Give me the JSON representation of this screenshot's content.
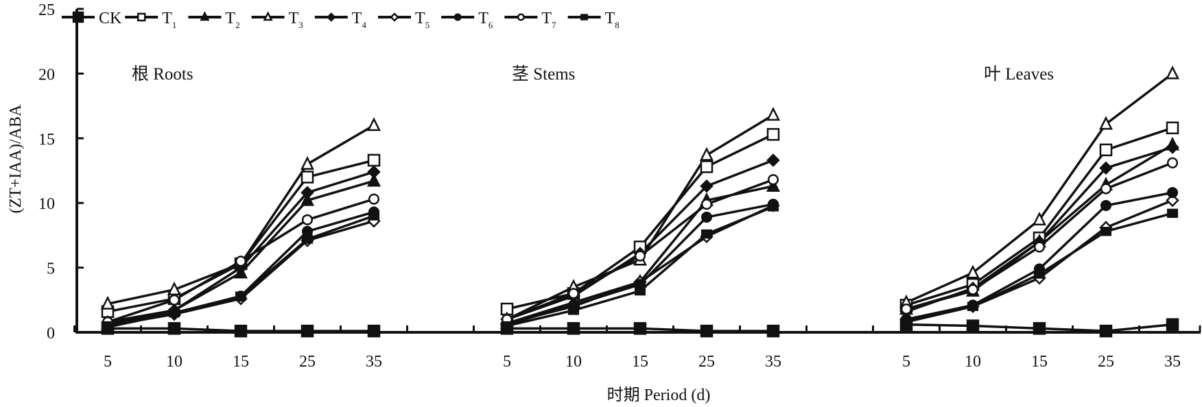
{
  "chart_data": {
    "type": "line",
    "ylabel": "(ZT+IAA)/ABA",
    "xlabel": "时期 Period (d)",
    "ylim": [
      0,
      25
    ],
    "yticks": [
      0,
      5,
      10,
      15,
      20,
      25
    ],
    "x": [
      "5",
      "10",
      "15",
      "25",
      "35"
    ],
    "legend_position": "top",
    "panels": [
      {
        "title": "根 Roots",
        "series": [
          {
            "name": "CK",
            "sub": "",
            "values": [
              0.3,
              0.3,
              0.1,
              0.1,
              0.1
            ]
          },
          {
            "name": "T",
            "sub": "1",
            "values": [
              1.6,
              2.6,
              5.3,
              12.0,
              13.3
            ]
          },
          {
            "name": "T",
            "sub": "2",
            "values": [
              0.6,
              1.7,
              4.6,
              10.2,
              11.7
            ]
          },
          {
            "name": "T",
            "sub": "3",
            "values": [
              2.2,
              3.3,
              5.3,
              13.0,
              16.0
            ]
          },
          {
            "name": "T",
            "sub": "4",
            "values": [
              0.8,
              1.7,
              5.0,
              10.8,
              12.4
            ]
          },
          {
            "name": "T",
            "sub": "5",
            "values": [
              0.5,
              1.4,
              2.6,
              7.1,
              8.6
            ]
          },
          {
            "name": "T",
            "sub": "6",
            "values": [
              0.4,
              1.5,
              2.8,
              7.8,
              9.3
            ]
          },
          {
            "name": "T",
            "sub": "7",
            "values": [
              0.8,
              2.5,
              5.5,
              8.7,
              10.3
            ]
          },
          {
            "name": "T",
            "sub": "8",
            "values": [
              0.5,
              1.5,
              2.8,
              7.2,
              9.0
            ]
          }
        ]
      },
      {
        "title": "茎 Stems",
        "series": [
          {
            "name": "CK",
            "sub": "",
            "values": [
              0.3,
              0.3,
              0.3,
              0.1,
              0.1
            ]
          },
          {
            "name": "T",
            "sub": "1",
            "values": [
              1.8,
              3.0,
              6.6,
              12.8,
              15.3
            ]
          },
          {
            "name": "T",
            "sub": "2",
            "values": [
              0.7,
              2.3,
              3.9,
              10.2,
              11.3
            ]
          },
          {
            "name": "T",
            "sub": "3",
            "values": [
              1.0,
              3.5,
              5.6,
              13.7,
              16.8
            ]
          },
          {
            "name": "T",
            "sub": "4",
            "values": [
              1.0,
              2.8,
              6.1,
              11.3,
              13.3
            ]
          },
          {
            "name": "T",
            "sub": "5",
            "values": [
              0.7,
              2.0,
              3.9,
              7.4,
              9.8
            ]
          },
          {
            "name": "T",
            "sub": "6",
            "values": [
              0.6,
              2.1,
              3.7,
              8.9,
              9.9
            ]
          },
          {
            "name": "T",
            "sub": "7",
            "values": [
              1.0,
              3.0,
              5.9,
              9.9,
              11.8
            ]
          },
          {
            "name": "T",
            "sub": "8",
            "values": [
              0.5,
              1.7,
              3.2,
              7.6,
              9.7
            ]
          }
        ]
      },
      {
        "title": "叶 Leaves",
        "series": [
          {
            "name": "CK",
            "sub": "",
            "values": [
              0.6,
              0.5,
              0.3,
              0.1,
              0.6
            ]
          },
          {
            "name": "T",
            "sub": "1",
            "values": [
              2.1,
              3.7,
              7.3,
              14.1,
              15.8
            ]
          },
          {
            "name": "T",
            "sub": "2",
            "values": [
              1.8,
              3.2,
              7.0,
              11.4,
              14.5
            ]
          },
          {
            "name": "T",
            "sub": "3",
            "values": [
              2.3,
              4.6,
              8.7,
              16.1,
              20.0
            ]
          },
          {
            "name": "T",
            "sub": "4",
            "values": [
              1.6,
              3.4,
              7.0,
              12.7,
              14.3
            ]
          },
          {
            "name": "T",
            "sub": "5",
            "values": [
              1.0,
              2.0,
              4.2,
              8.1,
              10.2
            ]
          },
          {
            "name": "T",
            "sub": "6",
            "values": [
              1.0,
              2.1,
              4.9,
              9.8,
              10.8
            ]
          },
          {
            "name": "T",
            "sub": "7",
            "values": [
              1.8,
              3.3,
              6.6,
              11.1,
              13.1
            ]
          },
          {
            "name": "T",
            "sub": "8",
            "values": [
              0.8,
              2.0,
              4.5,
              7.8,
              9.2
            ]
          }
        ]
      }
    ],
    "markers": [
      "filled-square",
      "open-square",
      "filled-triangle",
      "open-triangle",
      "filled-diamond",
      "open-diamond",
      "filled-circle",
      "open-circle",
      "filled-square-small"
    ],
    "line_color": "#111111"
  }
}
